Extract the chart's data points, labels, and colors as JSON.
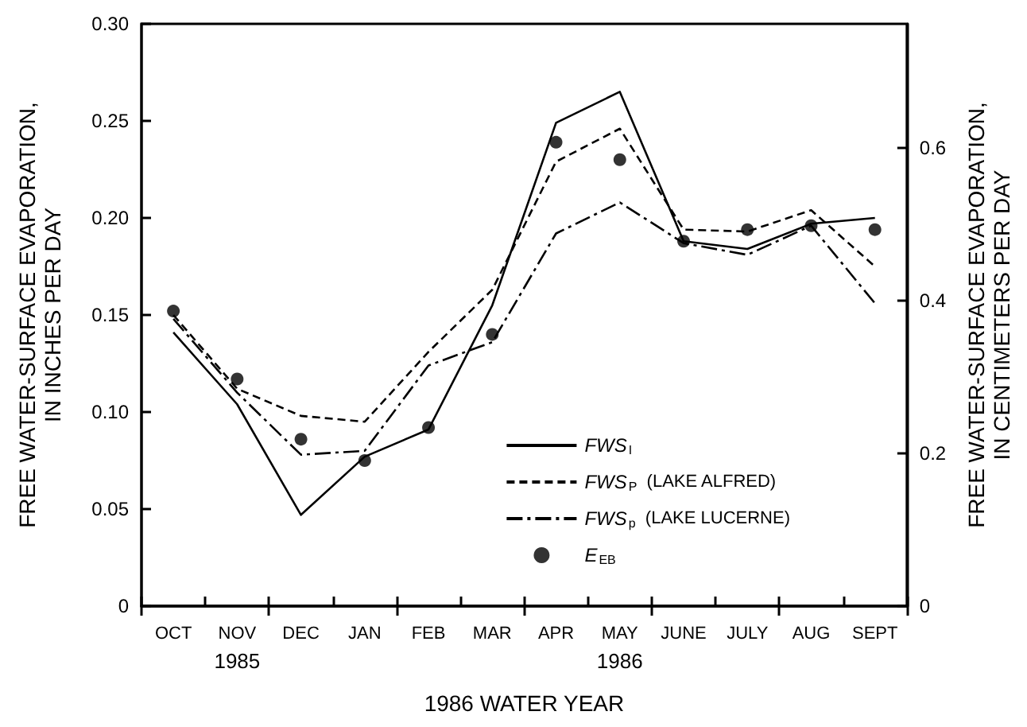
{
  "chart_data": {
    "type": "line",
    "xlabel": "1986 WATER YEAR",
    "ylabel": "FREE WATER-SURFACE EVAPORATION,\nIN INCHES PER DAY",
    "y2label": "FREE WATER-SURFACE EVAPORATION,\nIN CENTIMETERS PER DAY",
    "categories": [
      "OCT",
      "NOV",
      "DEC",
      "JAN",
      "FEB",
      "MAR",
      "APR",
      "MAY",
      "JUNE",
      "JULY",
      "AUG",
      "SEPT"
    ],
    "series": [
      {
        "name": "FWS$_{I}$",
        "line_style": "solid",
        "marker": "none",
        "color": "#000000",
        "values": [
          0.141,
          0.104,
          0.047,
          0.077,
          0.091,
          0.155,
          0.249,
          0.265,
          0.188,
          0.184,
          0.197,
          0.2
        ]
      },
      {
        "name": "FWS$_{P}$  (LAKE ALFRED)",
        "line_style": "dashed",
        "marker": "none",
        "color": "#000000",
        "values": [
          0.15,
          0.112,
          0.098,
          0.095,
          0.131,
          0.163,
          0.229,
          0.246,
          0.194,
          0.193,
          0.204,
          0.175
        ]
      },
      {
        "name": "FWS$_{p}$  (LAKE LUCERNE)",
        "line_style": "dashdot",
        "marker": "none",
        "color": "#000000",
        "values": [
          0.148,
          0.11,
          0.078,
          0.08,
          0.124,
          0.136,
          0.192,
          0.208,
          0.187,
          0.181,
          0.196,
          0.156
        ]
      },
      {
        "name": "E$_{EB}$",
        "type": "scatter",
        "marker": "circle",
        "color": "#000000",
        "values": [
          0.152,
          0.117,
          0.086,
          0.075,
          0.092,
          0.14,
          0.239,
          0.23,
          0.188,
          0.194,
          0.196,
          0.194
        ]
      }
    ],
    "ylim": [
      0,
      0.3
    ],
    "yticks": [
      0,
      0.05,
      {
        "value": 0.1,
        "label": "0.10"
      },
      0.15,
      {
        "value": 0.2,
        "label": "0.20"
      },
      0.25,
      {
        "value": 0.3,
        "label": "0.30"
      }
    ],
    "y2lim": [
      0,
      0.762
    ],
    "y2ticks": [
      0,
      0.2,
      0.4,
      0.6
    ],
    "annotations": [
      "1985",
      "1986"
    ],
    "grid": false,
    "legend": "bottom right"
  }
}
